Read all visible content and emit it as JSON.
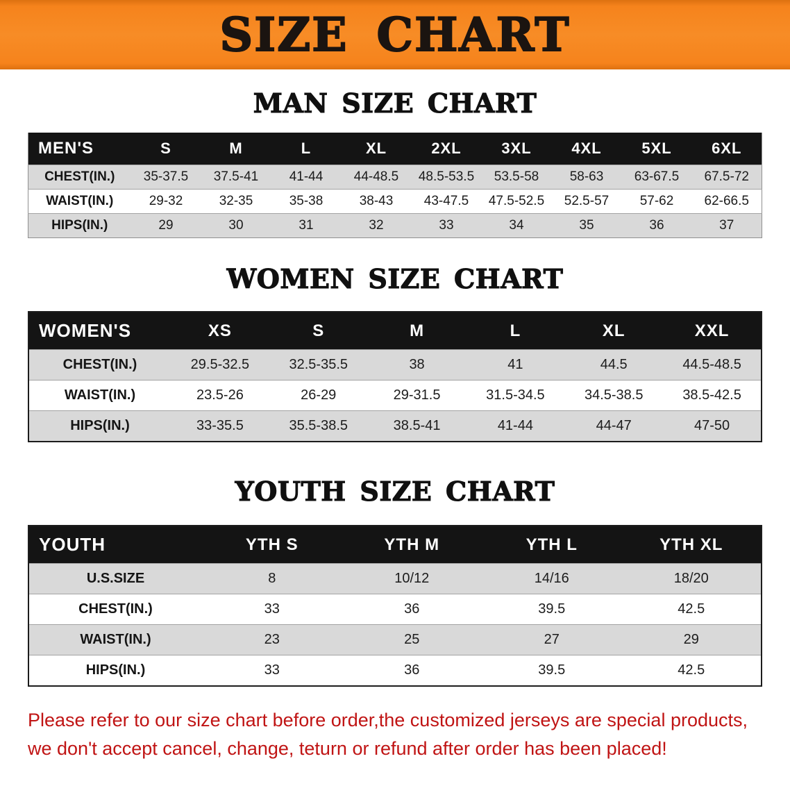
{
  "banner": {
    "title": "SIZE CHART"
  },
  "colors": {
    "banner_bg": "#f6831c",
    "banner_edge": "#dd7110",
    "header_bg": "#141414",
    "header_text": "#ffffff",
    "row_shaded": "#d9d9d9",
    "row_plain": "#ffffff",
    "text": "#151515",
    "note_text": "#c01414"
  },
  "chart_data": [
    {
      "type": "table",
      "title": "MAN SIZE CHART",
      "columns": [
        "MEN'S",
        "S",
        "M",
        "L",
        "XL",
        "2XL",
        "3XL",
        "4XL",
        "5XL",
        "6XL"
      ],
      "rows": [
        [
          "CHEST(IN.)",
          "35-37.5",
          "37.5-41",
          "41-44",
          "44-48.5",
          "48.5-53.5",
          "53.5-58",
          "58-63",
          "63-67.5",
          "67.5-72"
        ],
        [
          "WAIST(IN.)",
          "29-32",
          "32-35",
          "35-38",
          "38-43",
          "43-47.5",
          "47.5-52.5",
          "52.5-57",
          "57-62",
          "62-66.5"
        ],
        [
          "HIPS(IN.)",
          "29",
          "30",
          "31",
          "32",
          "33",
          "34",
          "35",
          "36",
          "37"
        ]
      ]
    },
    {
      "type": "table",
      "title": "WOMEN SIZE CHART",
      "columns": [
        "WOMEN'S",
        "XS",
        "S",
        "M",
        "L",
        "XL",
        "XXL"
      ],
      "rows": [
        [
          "CHEST(IN.)",
          "29.5-32.5",
          "32.5-35.5",
          "38",
          "41",
          "44.5",
          "44.5-48.5"
        ],
        [
          "WAIST(IN.)",
          "23.5-26",
          "26-29",
          "29-31.5",
          "31.5-34.5",
          "34.5-38.5",
          "38.5-42.5"
        ],
        [
          "HIPS(IN.)",
          "33-35.5",
          "35.5-38.5",
          "38.5-41",
          "41-44",
          "44-47",
          "47-50"
        ]
      ]
    },
    {
      "type": "table",
      "title": "YOUTH SIZE CHART",
      "columns": [
        "YOUTH",
        "YTH S",
        "YTH M",
        "YTH L",
        "YTH XL"
      ],
      "rows": [
        [
          "U.S.SIZE",
          "8",
          "10/12",
          "14/16",
          "18/20"
        ],
        [
          "CHEST(IN.)",
          "33",
          "36",
          "39.5",
          "42.5"
        ],
        [
          "WAIST(IN.)",
          "23",
          "25",
          "27",
          "29"
        ],
        [
          "HIPS(IN.)",
          "33",
          "36",
          "39.5",
          "42.5"
        ]
      ]
    }
  ],
  "footer": {
    "line1": "Please refer to our size chart before order,the customized jerseys are special products,",
    "line2": "we don't accept cancel, change, teturn or refund after order has been placed!"
  }
}
